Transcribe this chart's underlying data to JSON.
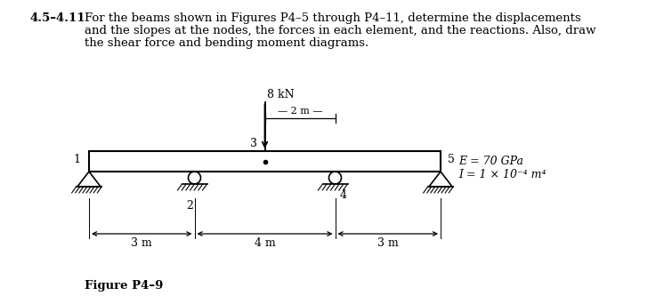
{
  "title_number": "4.5–4.11",
  "title_line1": "For the beams shown in Figures P4–5 through P4–11, determine the displacements",
  "title_line2": "and the slopes at the nodes, the forces in each element, and the reactions. Also, draw",
  "title_line3": "the shear force and bending moment diagrams.",
  "figure_label": "Figure P4–9",
  "E_text": "E = 70 GPa",
  "I_text": "I = 1 × 10⁻⁴ m⁴",
  "load_label": "8 kN",
  "dim_2m": "— 2 m —",
  "dim_3m": "3 m",
  "dim_4m": "4 m",
  "bg_color": "#ffffff",
  "text_color": "#000000",
  "title_fontsize": 9.5,
  "diagram_fontsize": 9,
  "figure_label_fontsize": 9.5,
  "beam_lw": 1.5,
  "support_lw": 1.2,
  "arrow_lw": 1.3,
  "node1_label": "1",
  "node2_label": "2",
  "node3_label": "3",
  "node4_label": "4",
  "node5_label": "5"
}
